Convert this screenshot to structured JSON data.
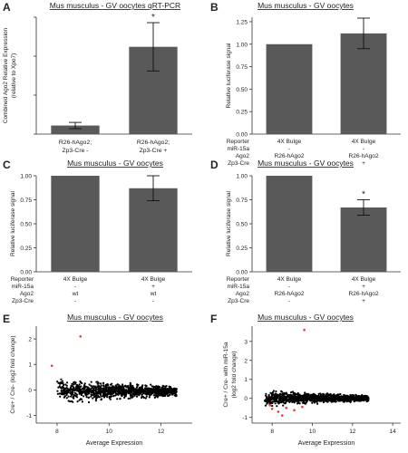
{
  "panels": [
    {
      "letter": "A",
      "title": "Mus musculus - GV oocytes qRT-PCR"
    },
    {
      "letter": "B",
      "title": "Mus musculus - GV oocytes"
    },
    {
      "letter": "C",
      "title": "Mus musculus - GV oocytes"
    },
    {
      "letter": "D",
      "title": "Mus musculus - GV oocytes"
    },
    {
      "letter": "E",
      "title": "Mus musculus - GV oocytes"
    },
    {
      "letter": "F",
      "title": "Mus musculus - GV oocytes"
    }
  ],
  "chart_data": [
    {
      "id": "A",
      "type": "bar",
      "title": "Mus musculus - GV oocytes qRT-PCR",
      "ylabel": "Combined Ago2 Relative Expression (relative to Xpo7)",
      "categories": [
        "R26-hAgo2; Zp3-Cre -",
        "R26-hAgo2; Zp3-Cre +"
      ],
      "values": [
        1.1,
        11.2
      ],
      "errors": [
        0.4,
        3.1
      ],
      "ylim": [
        0,
        15
      ],
      "significance": [
        "",
        "*"
      ],
      "colors": {
        "bar": "#595959"
      }
    },
    {
      "id": "B",
      "type": "bar",
      "title": "Mus musculus - GV oocytes",
      "ylabel": "Relative luciferase signal",
      "yticks": [
        "0.00",
        "0.25",
        "0.50",
        "0.75",
        "1.00",
        "1.25"
      ],
      "ylim": [
        0,
        1.3
      ],
      "values": [
        1.0,
        1.12
      ],
      "errors": [
        0.0,
        0.17
      ],
      "significance": [
        "",
        ""
      ],
      "conditions": [
        {
          "label": "Reporter",
          "values": [
            "4X Bulge",
            "4X Bulge"
          ]
        },
        {
          "label": "miR-15a",
          "values": [
            "-",
            "-"
          ]
        },
        {
          "label": "Ago2",
          "values": [
            "R26-hAgo2",
            "R26-hAgo2"
          ]
        },
        {
          "label": "Zp3-Cre",
          "values": [
            "-",
            "+"
          ]
        }
      ]
    },
    {
      "id": "C",
      "type": "bar",
      "title": "Mus musculus - GV oocytes",
      "ylabel": "Relative luciferase signal",
      "yticks": [
        "0.00",
        "0.25",
        "0.50",
        "0.75",
        "1.00"
      ],
      "ylim": [
        0,
        1.0
      ],
      "values": [
        1.0,
        0.87
      ],
      "errors": [
        0.0,
        0.13
      ],
      "significance": [
        "",
        ""
      ],
      "conditions": [
        {
          "label": "Reporter",
          "values": [
            "4X Bulge",
            "4X Bulge"
          ]
        },
        {
          "label": "miR-15a",
          "values": [
            "-",
            "+"
          ]
        },
        {
          "label": "Ago2",
          "values": [
            "wt",
            "wt"
          ]
        },
        {
          "label": "Zp3-Cre",
          "values": [
            "-",
            "-"
          ]
        }
      ]
    },
    {
      "id": "D",
      "type": "bar",
      "title": "Mus musculus - GV oocytes",
      "ylabel": "Relative luciferase signal",
      "yticks": [
        "0.00",
        "0.25",
        "0.50",
        "0.75",
        "1.00"
      ],
      "ylim": [
        0,
        1.0
      ],
      "values": [
        1.0,
        0.67
      ],
      "errors": [
        0.0,
        0.08
      ],
      "significance": [
        "",
        "*"
      ],
      "conditions": [
        {
          "label": "Reporter",
          "values": [
            "4X Bulge",
            "4X Bulge"
          ]
        },
        {
          "label": "miR-15a",
          "values": [
            "-",
            "+"
          ]
        },
        {
          "label": "Ago2",
          "values": [
            "R26-hAgo2",
            "R26-hAgo2"
          ]
        },
        {
          "label": "Zp3-Cre",
          "values": [
            "-",
            "+"
          ]
        }
      ]
    },
    {
      "id": "E",
      "type": "scatter",
      "title": "Mus musculus - GV oocytes",
      "xlabel": "Average Expression",
      "ylabel": "Cre+ / Cre- (log2 fold change)",
      "xticks": [
        "8",
        "10",
        "12"
      ],
      "yticks": [
        "-1",
        "0",
        "1",
        "2"
      ],
      "xlim": [
        7.2,
        13.2
      ],
      "ylim": [
        -1.3,
        2.5
      ],
      "cloud": {
        "x_range": [
          8,
          12.6
        ],
        "y_center": -0.05,
        "y_spread": 0.22
      },
      "points": [
        {
          "x": 8.9,
          "y": 2.1,
          "color": "#e03a3a"
        },
        {
          "x": 7.8,
          "y": 0.95,
          "color": "#e03a3a"
        }
      ],
      "colors": {
        "main": "#000000",
        "highlight": "#e03a3a"
      }
    },
    {
      "id": "F",
      "type": "scatter",
      "title": "Mus musculus - GV oocytes",
      "xlabel": "Average Expression",
      "ylabel": "Cre+ / Cre- with miR-15a (log2 fold change)",
      "xticks": [
        "8",
        "10",
        "12",
        "14"
      ],
      "yticks": [
        "-1",
        "0",
        "1",
        "2",
        "3"
      ],
      "xlim": [
        7.0,
        14.4
      ],
      "ylim": [
        -1.3,
        3.8
      ],
      "cloud": {
        "x_range": [
          7.6,
          12.8
        ],
        "y_center": 0.0,
        "y_spread": 0.18
      },
      "points": [
        {
          "x": 9.6,
          "y": 3.6,
          "color": "#e03a3a"
        },
        {
          "x": 8.0,
          "y": -0.55,
          "color": "#e03a3a"
        },
        {
          "x": 8.3,
          "y": -0.7,
          "color": "#e03a3a"
        },
        {
          "x": 8.7,
          "y": -0.5,
          "color": "#e03a3a"
        },
        {
          "x": 9.1,
          "y": -0.62,
          "color": "#e03a3a"
        },
        {
          "x": 9.5,
          "y": -0.45,
          "color": "#e03a3a"
        },
        {
          "x": 7.9,
          "y": -0.35,
          "color": "#e03a3a"
        },
        {
          "x": 8.5,
          "y": -0.9,
          "color": "#e03a3a"
        }
      ],
      "colors": {
        "main": "#000000",
        "highlight": "#e03a3a"
      }
    }
  ]
}
